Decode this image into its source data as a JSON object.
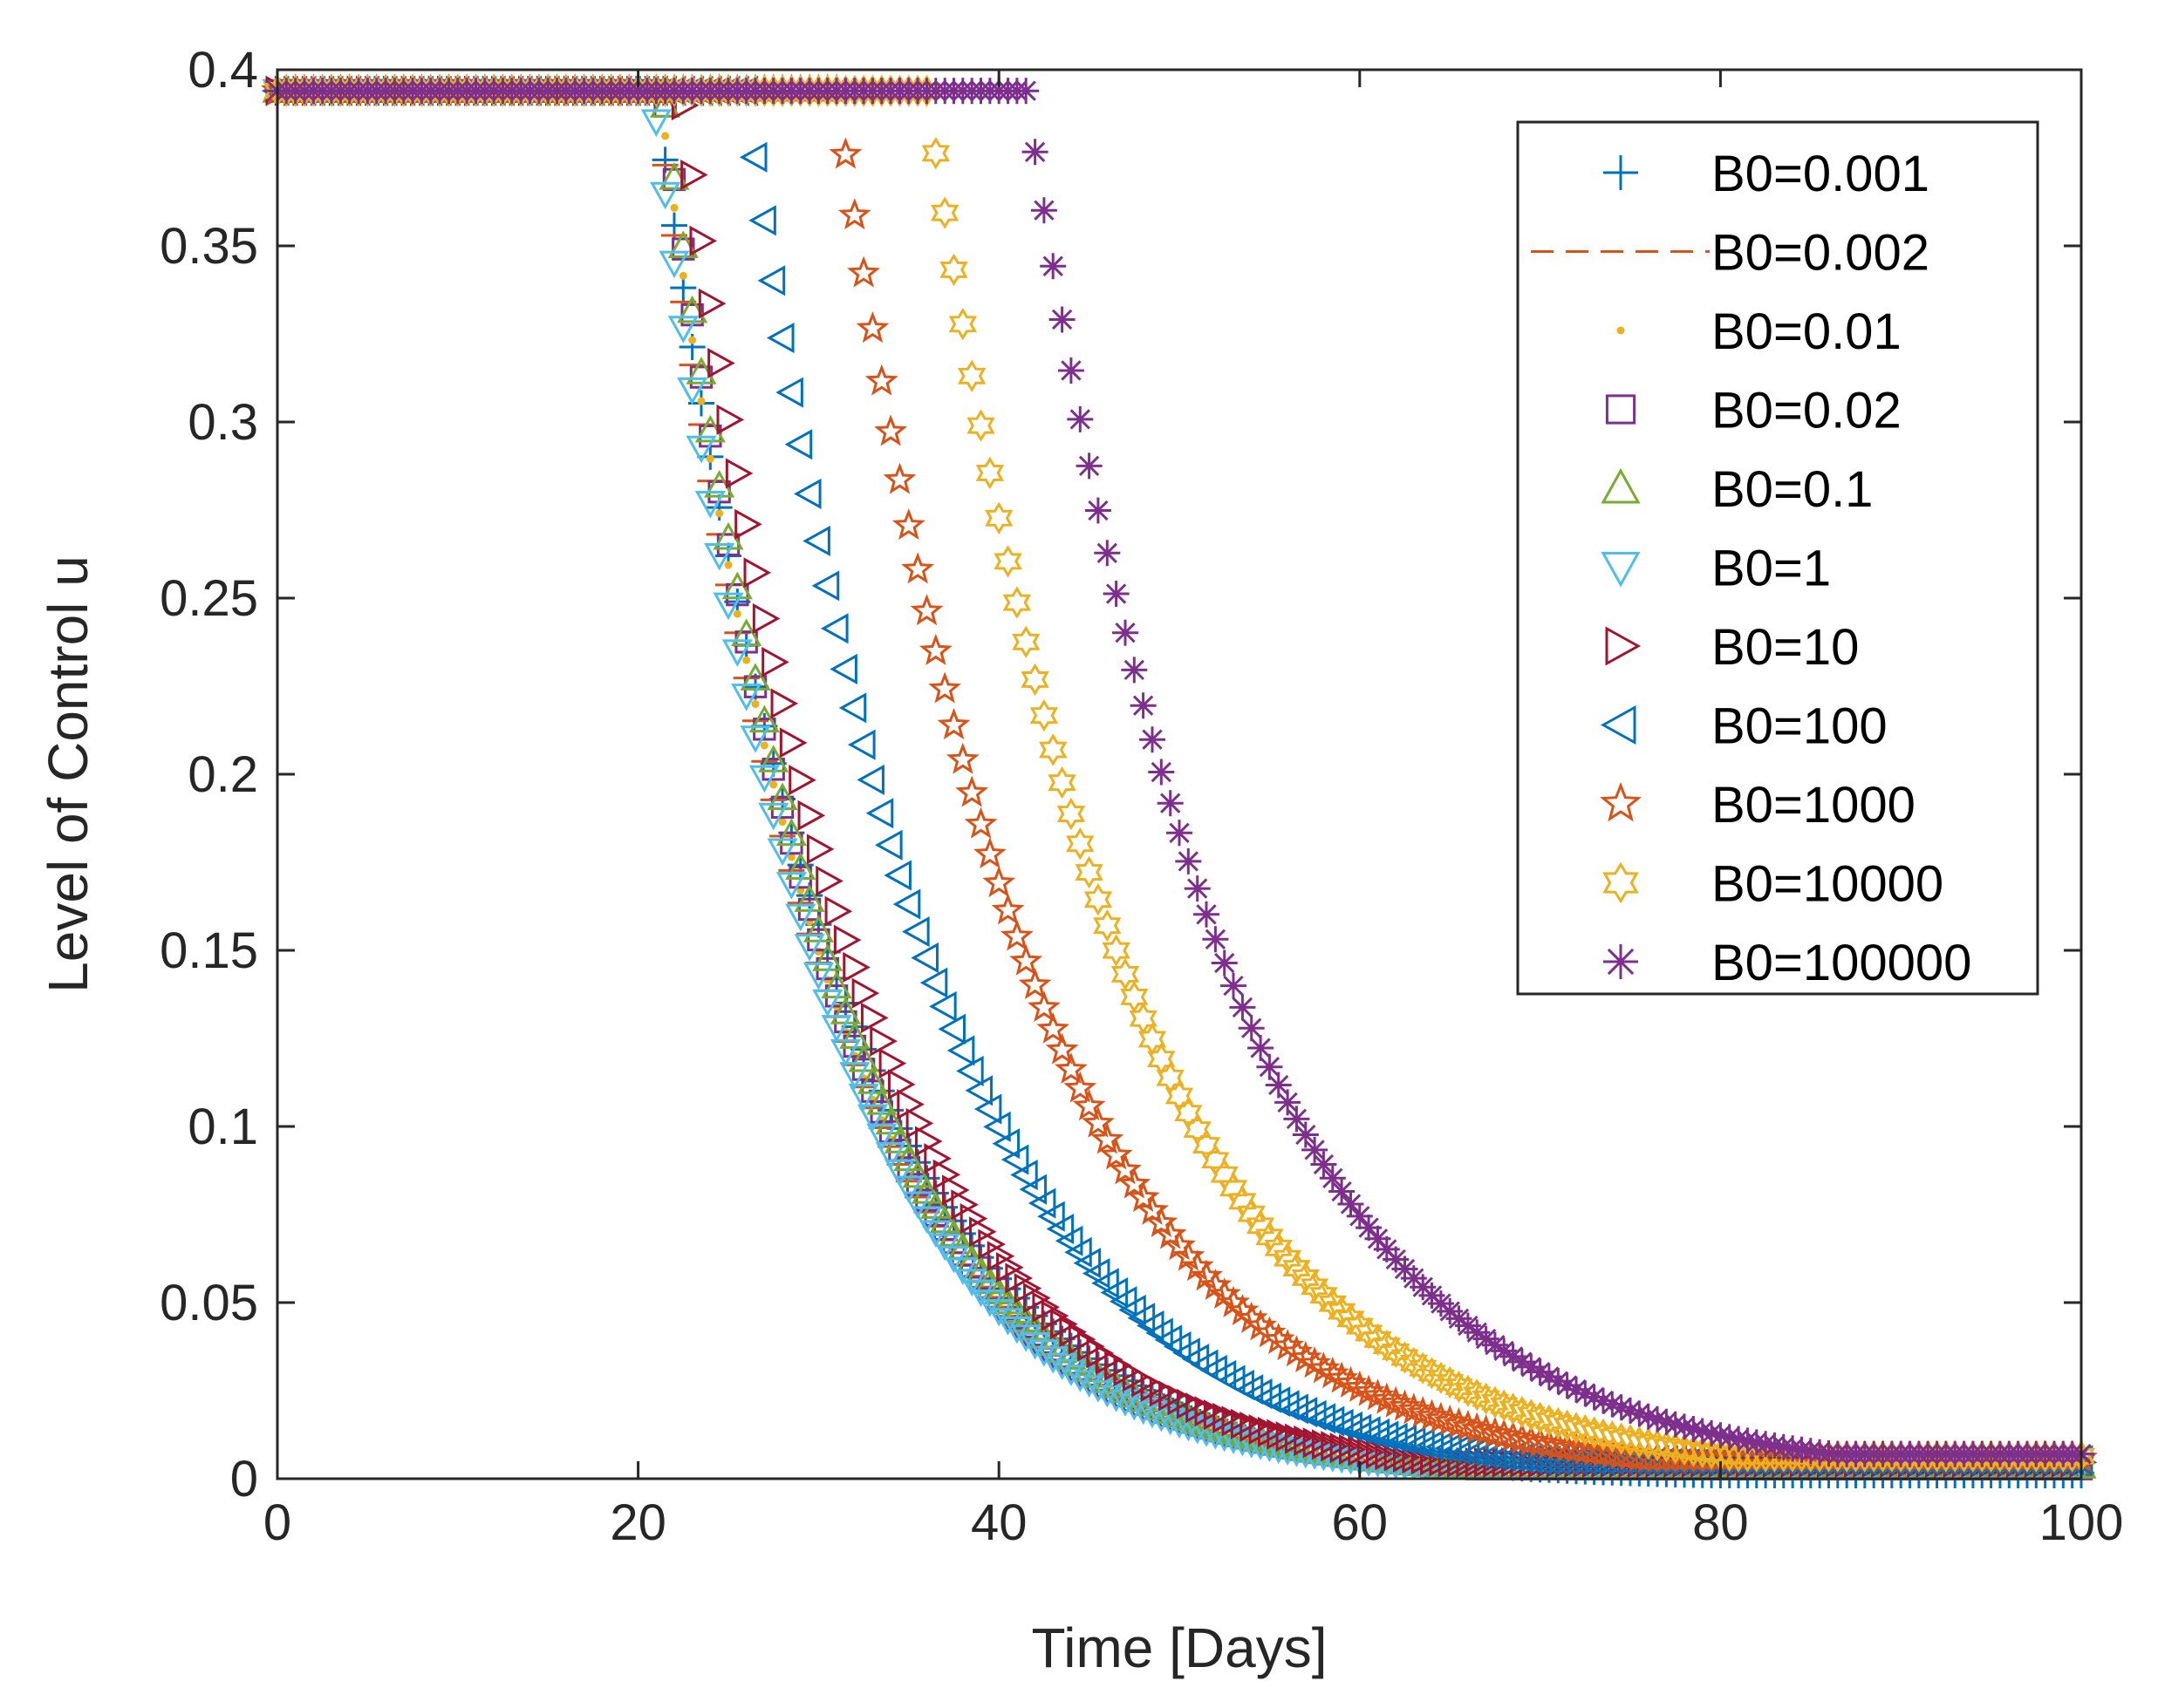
{
  "chart_data": {
    "type": "scatter",
    "xlabel": "Time [Days]",
    "ylabel": "Level of Control u",
    "xlim": [
      0,
      100
    ],
    "ylim": [
      0,
      0.4
    ],
    "xticks": [
      "0",
      "20",
      "40",
      "60",
      "80",
      "100"
    ],
    "yticks": [
      "0",
      "0.05",
      "0.1",
      "0.15",
      "0.2",
      "0.25",
      "0.3",
      "0.35",
      "0.4"
    ],
    "grid": false,
    "legend_position": "top-right",
    "umax": 0.394,
    "series": [
      {
        "name": "B0=0.001",
        "marker": "plus",
        "color": "#0072BD",
        "switch_day": 21.0,
        "decay_rate": 0.102
      },
      {
        "name": "B0=0.002",
        "marker": "dash",
        "color": "#D95319",
        "switch_day": 21.0,
        "decay_rate": 0.11
      },
      {
        "name": "B0=0.01",
        "marker": "dot",
        "color": "#EDB120",
        "switch_day": 21.2,
        "decay_rate": 0.11
      },
      {
        "name": "B0=0.02",
        "marker": "square",
        "color": "#7E2F8E",
        "switch_day": 21.4,
        "decay_rate": 0.11
      },
      {
        "name": "B0=0.1",
        "marker": "triangle-up",
        "color": "#77AC30",
        "switch_day": 21.4,
        "decay_rate": 0.108
      },
      {
        "name": "B0=1",
        "marker": "triangle-down",
        "color": "#4DBEEE",
        "switch_day": 20.8,
        "decay_rate": 0.11
      },
      {
        "name": "B0=10",
        "marker": "triangle-right",
        "color": "#A2142F",
        "switch_day": 22.4,
        "decay_rate": 0.104
      },
      {
        "name": "B0=100",
        "marker": "triangle-left",
        "color": "#0072BD",
        "switch_day": 26.0,
        "decay_rate": 0.098
      },
      {
        "name": "B0=1000",
        "marker": "pentagram",
        "color": "#D95319",
        "switch_day": 31.0,
        "decay_rate": 0.094
      },
      {
        "name": "B0=10000",
        "marker": "hexagram",
        "color": "#EDB120",
        "switch_day": 36.0,
        "decay_rate": 0.092
      },
      {
        "name": "B0=100000",
        "marker": "asterisk",
        "color": "#7E2F8E",
        "switch_day": 41.5,
        "decay_rate": 0.09
      }
    ]
  }
}
